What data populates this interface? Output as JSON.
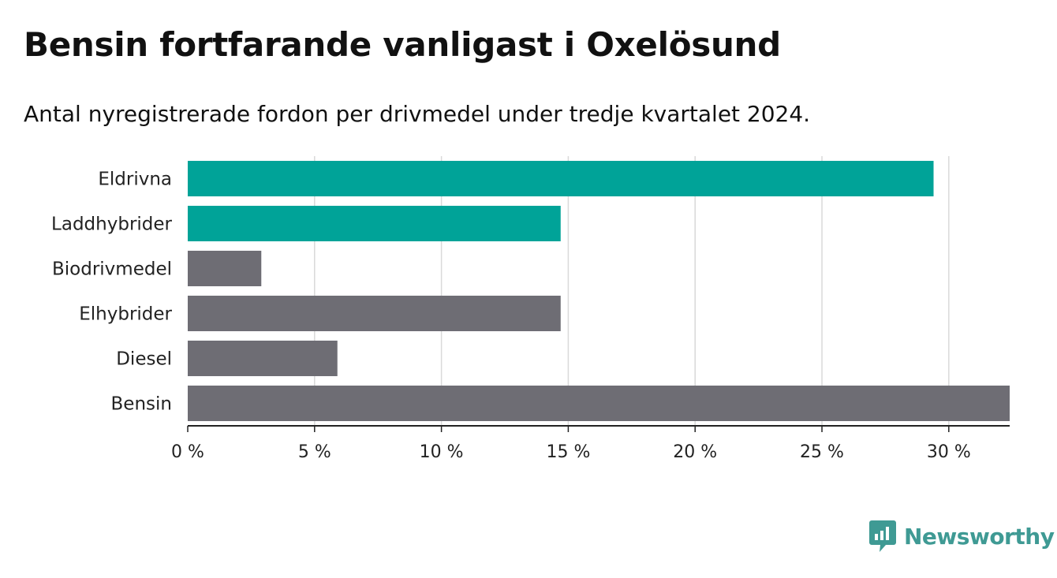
{
  "header": {
    "title": "Bensin fortfarande vanligast i Oxelösund",
    "subtitle": "Antal nyregistrerade fordon per drivmedel under tredje kvartalet 2024."
  },
  "chart_data": {
    "type": "bar",
    "orientation": "horizontal",
    "categories": [
      "Eldrivna",
      "Laddhybrider",
      "Biodrivmedel",
      "Elhybrider",
      "Diesel",
      "Bensin"
    ],
    "values": [
      29.4,
      14.7,
      2.9,
      14.7,
      5.9,
      32.4
    ],
    "bar_colors": [
      "#00a398",
      "#00a398",
      "#6e6d74",
      "#6e6d74",
      "#6e6d74",
      "#6e6d74"
    ],
    "x_ticks": [
      0,
      5,
      10,
      15,
      20,
      25,
      30
    ],
    "x_tick_labels": [
      "0 %",
      "5 %",
      "10 %",
      "15 %",
      "20 %",
      "25 %",
      "30 %"
    ],
    "xlim": [
      0,
      32.4
    ],
    "grid": true
  },
  "brand": {
    "name": "Newsworthy",
    "icon": "newsworthy-logo-icon",
    "color": "#3f9a94"
  }
}
